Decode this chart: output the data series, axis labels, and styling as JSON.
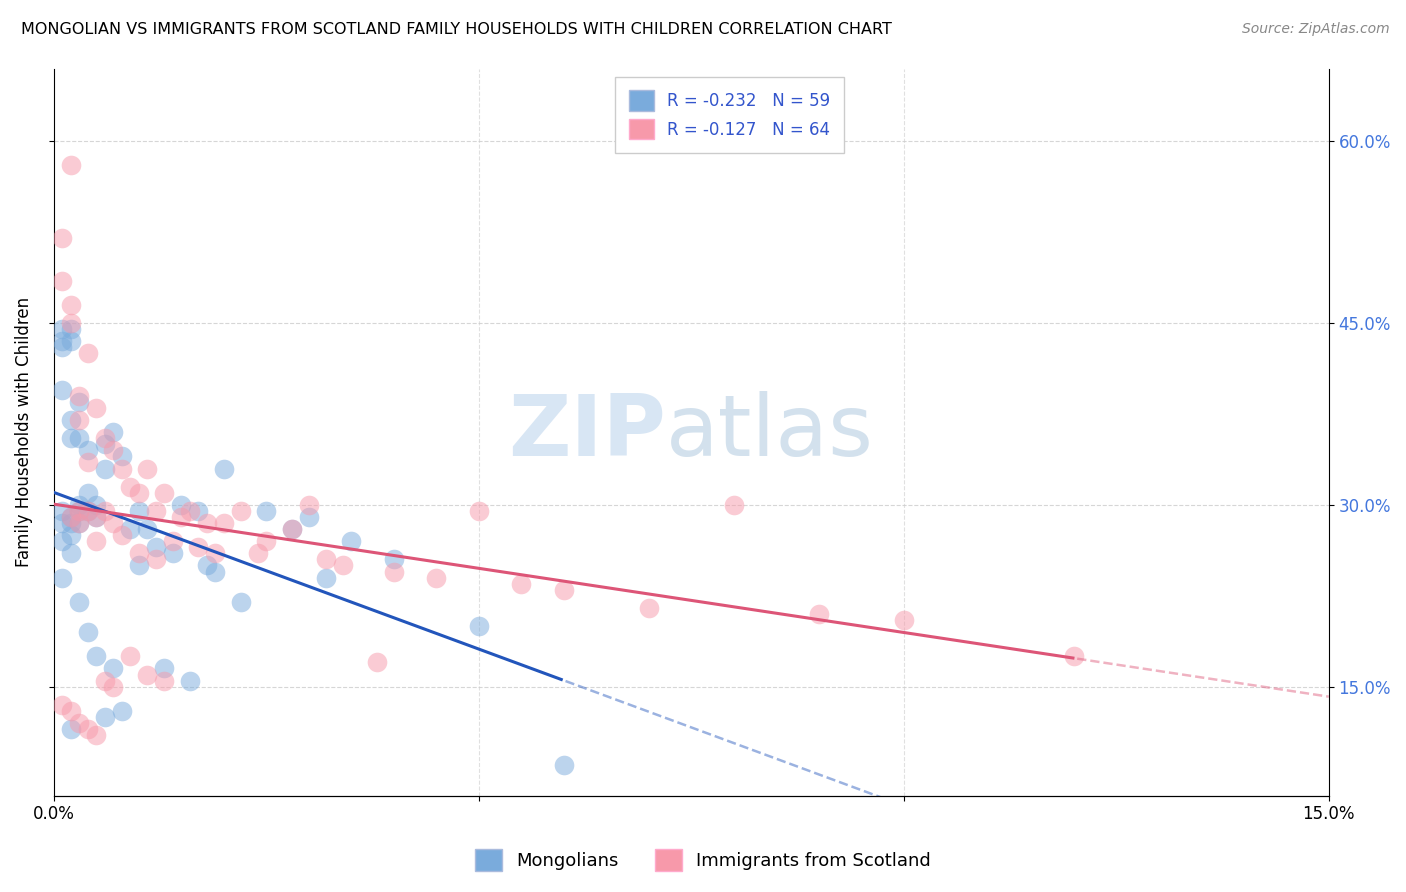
{
  "title": "MONGOLIAN VS IMMIGRANTS FROM SCOTLAND FAMILY HOUSEHOLDS WITH CHILDREN CORRELATION CHART",
  "source": "Source: ZipAtlas.com",
  "ylabel": "Family Households with Children",
  "xlim": [
    0.0,
    0.15
  ],
  "ylim": [
    0.06,
    0.66
  ],
  "xticks": [
    0.0,
    0.05,
    0.1,
    0.15
  ],
  "xtick_labels": [
    "0.0%",
    "",
    "",
    "15.0%"
  ],
  "yticks": [
    0.15,
    0.3,
    0.45,
    0.6
  ],
  "ytick_labels_right": [
    "15.0%",
    "30.0%",
    "45.0%",
    "60.0%"
  ],
  "mongolians_color": "#7AABDC",
  "scotland_color": "#F799AA",
  "mongolians_line_color": "#2255BB",
  "scotland_line_color": "#DD5577",
  "mongolians_R": -0.232,
  "mongolians_N": 59,
  "scotland_R": -0.127,
  "scotland_N": 64,
  "legend_text_color": "#3355CC",
  "watermark_color": "#C8DCF0",
  "mongolians_x": [
    0.001,
    0.001,
    0.001,
    0.001,
    0.001,
    0.001,
    0.001,
    0.001,
    0.002,
    0.002,
    0.002,
    0.002,
    0.002,
    0.002,
    0.002,
    0.002,
    0.002,
    0.003,
    0.003,
    0.003,
    0.003,
    0.003,
    0.003,
    0.004,
    0.004,
    0.004,
    0.004,
    0.005,
    0.005,
    0.005,
    0.006,
    0.006,
    0.006,
    0.007,
    0.007,
    0.008,
    0.008,
    0.009,
    0.01,
    0.01,
    0.011,
    0.012,
    0.013,
    0.014,
    0.015,
    0.016,
    0.017,
    0.018,
    0.019,
    0.02,
    0.022,
    0.025,
    0.028,
    0.03,
    0.032,
    0.035,
    0.04,
    0.05,
    0.06
  ],
  "mongolians_y": [
    0.435,
    0.445,
    0.43,
    0.395,
    0.285,
    0.295,
    0.27,
    0.24,
    0.445,
    0.435,
    0.37,
    0.355,
    0.29,
    0.285,
    0.275,
    0.26,
    0.115,
    0.385,
    0.355,
    0.3,
    0.295,
    0.285,
    0.22,
    0.345,
    0.31,
    0.295,
    0.195,
    0.3,
    0.29,
    0.175,
    0.35,
    0.33,
    0.125,
    0.36,
    0.165,
    0.34,
    0.13,
    0.28,
    0.295,
    0.25,
    0.28,
    0.265,
    0.165,
    0.26,
    0.3,
    0.155,
    0.295,
    0.25,
    0.245,
    0.33,
    0.22,
    0.295,
    0.28,
    0.29,
    0.24,
    0.27,
    0.255,
    0.2,
    0.085
  ],
  "scotland_x": [
    0.001,
    0.001,
    0.001,
    0.002,
    0.002,
    0.002,
    0.002,
    0.002,
    0.003,
    0.003,
    0.003,
    0.003,
    0.003,
    0.004,
    0.004,
    0.004,
    0.004,
    0.005,
    0.005,
    0.005,
    0.005,
    0.006,
    0.006,
    0.006,
    0.007,
    0.007,
    0.007,
    0.008,
    0.008,
    0.009,
    0.009,
    0.01,
    0.01,
    0.011,
    0.011,
    0.012,
    0.012,
    0.013,
    0.013,
    0.014,
    0.015,
    0.016,
    0.017,
    0.018,
    0.019,
    0.02,
    0.022,
    0.024,
    0.025,
    0.028,
    0.03,
    0.032,
    0.034,
    0.038,
    0.04,
    0.045,
    0.05,
    0.055,
    0.06,
    0.07,
    0.08,
    0.09,
    0.1,
    0.12
  ],
  "scotland_y": [
    0.52,
    0.485,
    0.135,
    0.58,
    0.465,
    0.45,
    0.29,
    0.13,
    0.39,
    0.37,
    0.295,
    0.285,
    0.12,
    0.425,
    0.335,
    0.295,
    0.115,
    0.38,
    0.29,
    0.27,
    0.11,
    0.355,
    0.295,
    0.155,
    0.345,
    0.285,
    0.15,
    0.33,
    0.275,
    0.315,
    0.175,
    0.31,
    0.26,
    0.33,
    0.16,
    0.295,
    0.255,
    0.31,
    0.155,
    0.27,
    0.29,
    0.295,
    0.265,
    0.285,
    0.26,
    0.285,
    0.295,
    0.26,
    0.27,
    0.28,
    0.3,
    0.255,
    0.25,
    0.17,
    0.245,
    0.24,
    0.295,
    0.235,
    0.23,
    0.215,
    0.3,
    0.21,
    0.205,
    0.175
  ],
  "mongo_line_x_end": 0.06,
  "scot_line_x_end": 0.12
}
